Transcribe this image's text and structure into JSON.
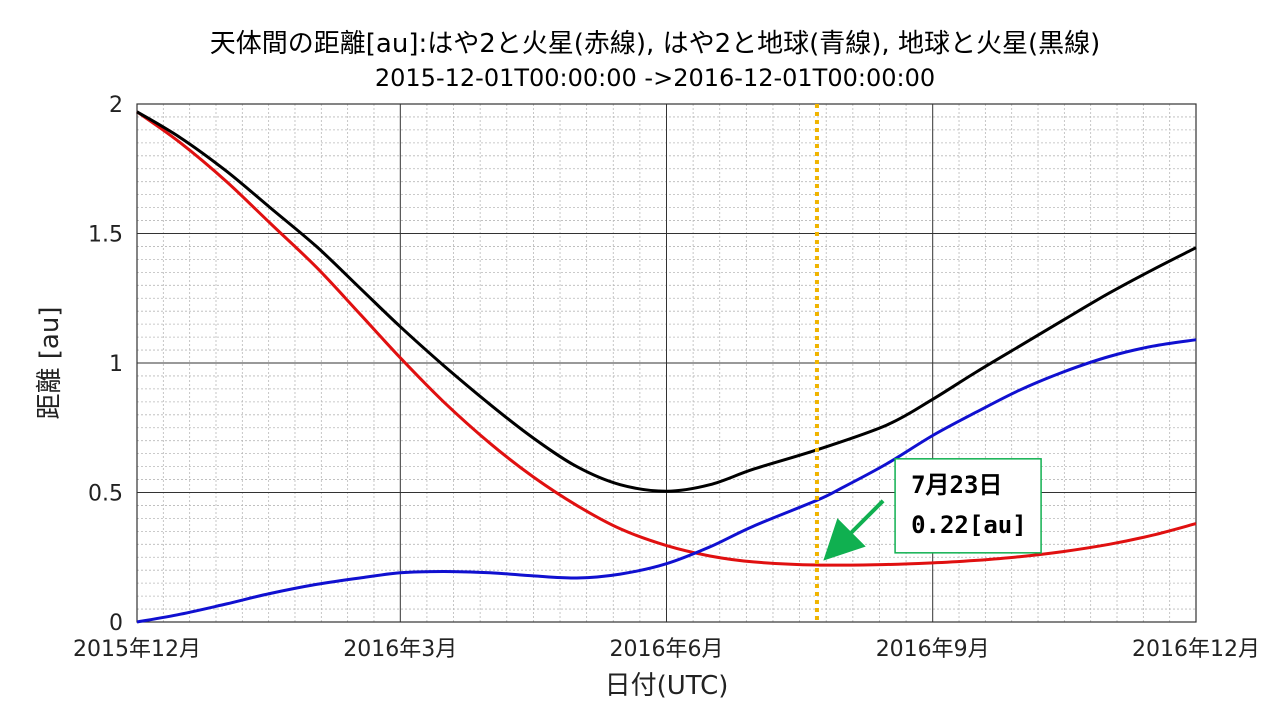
{
  "chart_data": {
    "type": "line",
    "title": "天体間の距離[au]:はや2と火星(赤線), はや2と地球(青線), 地球と火星(黒線)",
    "subtitle": "2015-12-01T00:00:00 ->2016-12-01T00:00:00",
    "xlabel": "日付(UTC)",
    "ylabel": "距離 [au]",
    "xlim": [
      "2015-12-01",
      "2016-12-01"
    ],
    "ylim": [
      0,
      2
    ],
    "grid": true,
    "x_ticks": [
      {
        "date": "2015-12-01",
        "label": "2015年12月"
      },
      {
        "date": "2016-03-01",
        "label": "2016年3月"
      },
      {
        "date": "2016-06-01",
        "label": "2016年6月"
      },
      {
        "date": "2016-09-01",
        "label": "2016年9月"
      },
      {
        "date": "2016-12-01",
        "label": "2016年12月"
      }
    ],
    "y_ticks": [
      {
        "value": 0,
        "label": "0"
      },
      {
        "value": 0.5,
        "label": "0.5"
      },
      {
        "value": 1,
        "label": "1"
      },
      {
        "value": 1.5,
        "label": "1.5"
      },
      {
        "value": 2,
        "label": "2"
      }
    ],
    "series": [
      {
        "color": "#e01010",
        "points": [
          [
            "2015-12-01",
            1.97
          ],
          [
            "2015-12-16",
            1.85
          ],
          [
            "2016-01-01",
            1.7
          ],
          [
            "2016-01-16",
            1.54
          ],
          [
            "2016-02-01",
            1.37
          ],
          [
            "2016-02-16",
            1.19
          ],
          [
            "2016-03-01",
            1.02
          ],
          [
            "2016-03-16",
            0.85
          ],
          [
            "2016-04-01",
            0.69
          ],
          [
            "2016-04-16",
            0.56
          ],
          [
            "2016-05-01",
            0.45
          ],
          [
            "2016-05-16",
            0.36
          ],
          [
            "2016-06-01",
            0.295
          ],
          [
            "2016-06-16",
            0.255
          ],
          [
            "2016-07-01",
            0.232
          ],
          [
            "2016-07-23",
            0.22
          ],
          [
            "2016-08-16",
            0.222
          ],
          [
            "2016-09-01",
            0.228
          ],
          [
            "2016-09-16",
            0.238
          ],
          [
            "2016-10-01",
            0.252
          ],
          [
            "2016-10-16",
            0.272
          ],
          [
            "2016-11-01",
            0.3
          ],
          [
            "2016-11-16",
            0.335
          ],
          [
            "2016-12-01",
            0.38
          ]
        ]
      },
      {
        "color": "#1010d0",
        "points": [
          [
            "2015-12-01",
            0.0
          ],
          [
            "2015-12-16",
            0.03
          ],
          [
            "2016-01-01",
            0.07
          ],
          [
            "2016-01-16",
            0.11
          ],
          [
            "2016-02-01",
            0.145
          ],
          [
            "2016-02-16",
            0.17
          ],
          [
            "2016-03-01",
            0.19
          ],
          [
            "2016-03-16",
            0.195
          ],
          [
            "2016-04-01",
            0.19
          ],
          [
            "2016-04-16",
            0.178
          ],
          [
            "2016-05-01",
            0.17
          ],
          [
            "2016-05-16",
            0.185
          ],
          [
            "2016-06-01",
            0.225
          ],
          [
            "2016-06-16",
            0.29
          ],
          [
            "2016-07-01",
            0.37
          ],
          [
            "2016-07-23",
            0.47
          ],
          [
            "2016-08-01",
            0.52
          ],
          [
            "2016-08-16",
            0.61
          ],
          [
            "2016-09-01",
            0.72
          ],
          [
            "2016-09-16",
            0.81
          ],
          [
            "2016-10-01",
            0.895
          ],
          [
            "2016-10-16",
            0.965
          ],
          [
            "2016-11-01",
            1.025
          ],
          [
            "2016-11-16",
            1.065
          ],
          [
            "2016-12-01",
            1.09
          ]
        ]
      },
      {
        "color": "#000000",
        "points": [
          [
            "2015-12-01",
            1.97
          ],
          [
            "2015-12-16",
            1.87
          ],
          [
            "2016-01-01",
            1.74
          ],
          [
            "2016-01-16",
            1.6
          ],
          [
            "2016-02-01",
            1.45
          ],
          [
            "2016-02-16",
            1.29
          ],
          [
            "2016-03-01",
            1.14
          ],
          [
            "2016-03-16",
            0.99
          ],
          [
            "2016-04-01",
            0.84
          ],
          [
            "2016-04-16",
            0.71
          ],
          [
            "2016-05-01",
            0.6
          ],
          [
            "2016-05-16",
            0.53
          ],
          [
            "2016-06-01",
            0.505
          ],
          [
            "2016-06-16",
            0.53
          ],
          [
            "2016-07-01",
            0.59
          ],
          [
            "2016-07-23",
            0.665
          ],
          [
            "2016-08-16",
            0.76
          ],
          [
            "2016-09-01",
            0.86
          ],
          [
            "2016-09-16",
            0.965
          ],
          [
            "2016-10-01",
            1.065
          ],
          [
            "2016-10-16",
            1.165
          ],
          [
            "2016-11-01",
            1.27
          ],
          [
            "2016-11-16",
            1.36
          ],
          [
            "2016-12-01",
            1.445
          ]
        ]
      }
    ],
    "marker_line": {
      "date": "2016-07-23",
      "color": "#f0b400",
      "style": "dotted"
    },
    "annotation": {
      "lines": [
        "7月23日",
        "0.22[au]"
      ],
      "target": [
        "2016-07-23",
        0.22
      ],
      "box_anchor": [
        "2016-08-19",
        0.63
      ],
      "arrow_color": "#10b050",
      "box_border_color": "#10b050"
    }
  }
}
